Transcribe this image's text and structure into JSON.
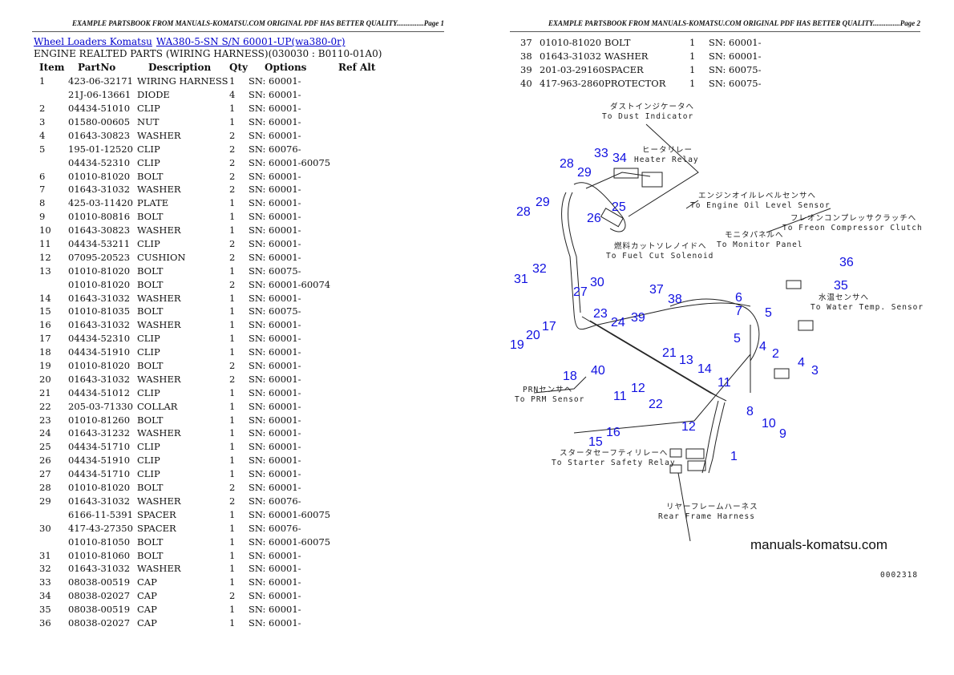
{
  "page1": {
    "header": "EXAMPLE PARTSBOOK FROM MANUALS-KOMATSU.COM ORIGINAL PDF HAS BETTER QUALITY...............Page 1",
    "breadcrumb": [
      "Wheel Loaders Komatsu",
      "WA380-5-SN S/N 60001-UP(wa380-0r)"
    ],
    "subtitle": "ENGINE REALTED PARTS (WIRING HARNESS)(030030 : B0110-01A0)",
    "columns": [
      "Item",
      "PartNo",
      "Description",
      "Qty",
      "Options",
      "Ref Alt"
    ],
    "rows": [
      [
        "1",
        "423-06-32171",
        "WIRING HARNESS",
        "1",
        "SN: 60001-"
      ],
      [
        "",
        "21J-06-13661",
        "DIODE",
        "4",
        "SN: 60001-"
      ],
      [
        "2",
        "04434-51010",
        "CLIP",
        "1",
        "SN: 60001-"
      ],
      [
        "3",
        "01580-00605",
        "NUT",
        "1",
        "SN: 60001-"
      ],
      [
        "4",
        "01643-30823",
        "WASHER",
        "2",
        "SN: 60001-"
      ],
      [
        "5",
        "195-01-12520",
        "CLIP",
        "2",
        "SN: 60076-"
      ],
      [
        "",
        "04434-52310",
        "CLIP",
        "2",
        "SN: 60001-60075"
      ],
      [
        "6",
        "01010-81020",
        "BOLT",
        "2",
        "SN: 60001-"
      ],
      [
        "7",
        "01643-31032",
        "WASHER",
        "2",
        "SN: 60001-"
      ],
      [
        "8",
        "425-03-11420",
        "PLATE",
        "1",
        "SN: 60001-"
      ],
      [
        "9",
        "01010-80816",
        "BOLT",
        "1",
        "SN: 60001-"
      ],
      [
        "10",
        "01643-30823",
        "WASHER",
        "1",
        "SN: 60001-"
      ],
      [
        "11",
        "04434-53211",
        "CLIP",
        "2",
        "SN: 60001-"
      ],
      [
        "12",
        "07095-20523",
        "CUSHION",
        "2",
        "SN: 60001-"
      ],
      [
        "13",
        "01010-81020",
        "BOLT",
        "1",
        "SN: 60075-"
      ],
      [
        "",
        "01010-81020",
        "BOLT",
        "2",
        "SN: 60001-60074"
      ],
      [
        "14",
        "01643-31032",
        "WASHER",
        "1",
        "SN: 60001-"
      ],
      [
        "15",
        "01010-81035",
        "BOLT",
        "1",
        "SN: 60075-"
      ],
      [
        "16",
        "01643-31032",
        "WASHER",
        "1",
        "SN: 60001-"
      ],
      [
        "17",
        "04434-52310",
        "CLIP",
        "1",
        "SN: 60001-"
      ],
      [
        "18",
        "04434-51910",
        "CLIP",
        "1",
        "SN: 60001-"
      ],
      [
        "19",
        "01010-81020",
        "BOLT",
        "2",
        "SN: 60001-"
      ],
      [
        "20",
        "01643-31032",
        "WASHER",
        "2",
        "SN: 60001-"
      ],
      [
        "21",
        "04434-51012",
        "CLIP",
        "1",
        "SN: 60001-"
      ],
      [
        "22",
        "205-03-71330",
        "COLLAR",
        "1",
        "SN: 60001-"
      ],
      [
        "23",
        "01010-81260",
        "BOLT",
        "1",
        "SN: 60001-"
      ],
      [
        "24",
        "01643-31232",
        "WASHER",
        "1",
        "SN: 60001-"
      ],
      [
        "25",
        "04434-51710",
        "CLIP",
        "1",
        "SN: 60001-"
      ],
      [
        "26",
        "04434-51910",
        "CLIP",
        "1",
        "SN: 60001-"
      ],
      [
        "27",
        "04434-51710",
        "CLIP",
        "1",
        "SN: 60001-"
      ],
      [
        "28",
        "01010-81020",
        "BOLT",
        "2",
        "SN: 60001-"
      ],
      [
        "29",
        "01643-31032",
        "WASHER",
        "2",
        "SN: 60076-"
      ],
      [
        "",
        "6166-11-5391",
        "SPACER",
        "1",
        "SN: 60001-60075"
      ],
      [
        "30",
        "417-43-27350",
        "SPACER",
        "1",
        "SN: 60076-"
      ],
      [
        "",
        "01010-81050",
        "BOLT",
        "1",
        "SN: 60001-60075"
      ],
      [
        "31",
        "01010-81060",
        "BOLT",
        "1",
        "SN: 60001-"
      ],
      [
        "32",
        "01643-31032",
        "WASHER",
        "1",
        "SN: 60001-"
      ],
      [
        "33",
        "08038-00519",
        "CAP",
        "1",
        "SN: 60001-"
      ],
      [
        "34",
        "08038-02027",
        "CAP",
        "2",
        "SN: 60001-"
      ],
      [
        "35",
        "08038-00519",
        "CAP",
        "1",
        "SN: 60001-"
      ],
      [
        "36",
        "08038-02027",
        "CAP",
        "1",
        "SN: 60001-"
      ]
    ]
  },
  "page2": {
    "header": "EXAMPLE PARTSBOOK FROM MANUALS-KOMATSU.COM ORIGINAL PDF HAS BETTER QUALITY...............Page 2",
    "rows": [
      [
        "37",
        "01010-81020",
        "BOLT",
        "1",
        "SN: 60001-"
      ],
      [
        "38",
        "01643-31032",
        "WASHER",
        "1",
        "SN: 60001-"
      ],
      [
        "39",
        "201-03-29160",
        "SPACER",
        "1",
        "SN: 60075-"
      ],
      [
        "40",
        "417-963-2860",
        "PROTECTOR",
        "1",
        "SN: 60075-"
      ]
    ],
    "diagram": {
      "callouts": [
        "28",
        "29",
        "33",
        "34",
        "25",
        "26",
        "28",
        "29",
        "32",
        "31",
        "30",
        "27",
        "37",
        "38",
        "6",
        "7",
        "5",
        "36",
        "35",
        "23",
        "24",
        "39",
        "17",
        "20",
        "19",
        "5",
        "4",
        "2",
        "4",
        "3",
        "21",
        "13",
        "14",
        "40",
        "11",
        "12",
        "11",
        "18",
        "22",
        "8",
        "10",
        "9",
        "12",
        "15",
        "16",
        "1"
      ],
      "annotations": [
        [
          "ダストインジケータへ",
          "To Dust Indicator"
        ],
        [
          "ヒータリレー",
          "Heater Relay"
        ],
        [
          "エンジンオイルレベルセンサへ",
          "To Engine Oil Level Sensor"
        ],
        [
          "フレオンコンプレッサクラッチへ",
          "To Freon Compressor Clutch"
        ],
        [
          "モニタパネルへ",
          "To Monitor Panel"
        ],
        [
          "燃料カットソレノイドへ",
          "To Fuel Cut Solenoid"
        ],
        [
          "水温センサへ",
          "To Water Temp. Sensor"
        ],
        [
          "PRNセンサへ",
          "To PRM Sensor"
        ],
        [
          "スタータセーフティリレーへ",
          "To Starter Safety Relay"
        ],
        [
          "リヤーフレームハーネス",
          "Rear Frame Harness"
        ]
      ],
      "watermark": "manuals-komatsu.com",
      "figure_code": "0002318",
      "callout_color": "#1010e0"
    }
  }
}
